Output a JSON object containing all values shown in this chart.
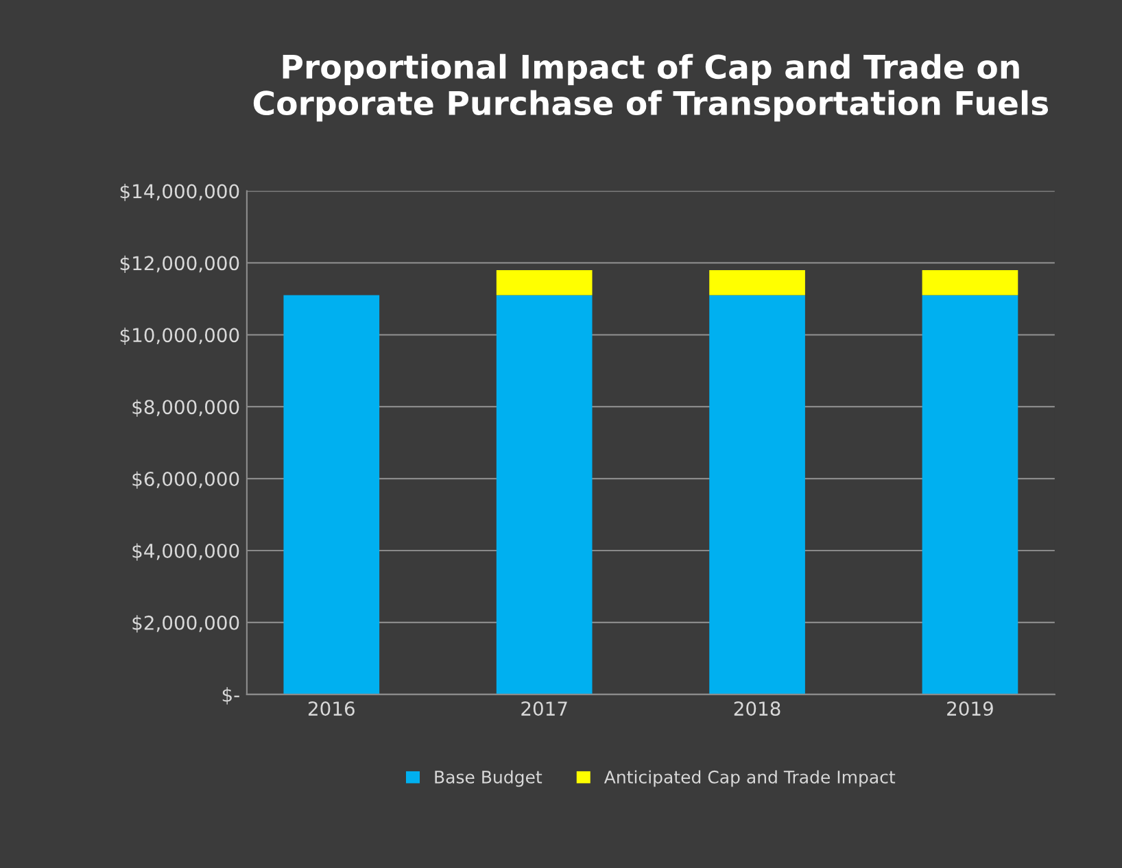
{
  "chart_data": {
    "type": "bar",
    "title": "Proportional Impact of Cap and Trade on\nCorporate Purchase of Transportation Fuels",
    "categories": [
      "2016",
      "2017",
      "2018",
      "2019"
    ],
    "stacked": true,
    "series": [
      {
        "name": "Base Budget",
        "color": "#00b0f0",
        "values": [
          11100000,
          11100000,
          11100000,
          11100000
        ]
      },
      {
        "name": "Anticipated Cap and Trade Impact",
        "color": "#ffff00",
        "values": [
          0,
          700000,
          700000,
          700000
        ]
      }
    ],
    "ylim": [
      0,
      14000000
    ],
    "yticks": [
      {
        "value": 0,
        "label": "$-"
      },
      {
        "value": 2000000,
        "label": "$2,000,000"
      },
      {
        "value": 4000000,
        "label": "$4,000,000"
      },
      {
        "value": 6000000,
        "label": "$6,000,000"
      },
      {
        "value": 8000000,
        "label": "$8,000,000"
      },
      {
        "value": 10000000,
        "label": "$10,000,000"
      },
      {
        "value": 12000000,
        "label": "$12,000,000"
      },
      {
        "value": 14000000,
        "label": "$14,000,000"
      }
    ],
    "grid": "y",
    "legend": "bottom"
  }
}
